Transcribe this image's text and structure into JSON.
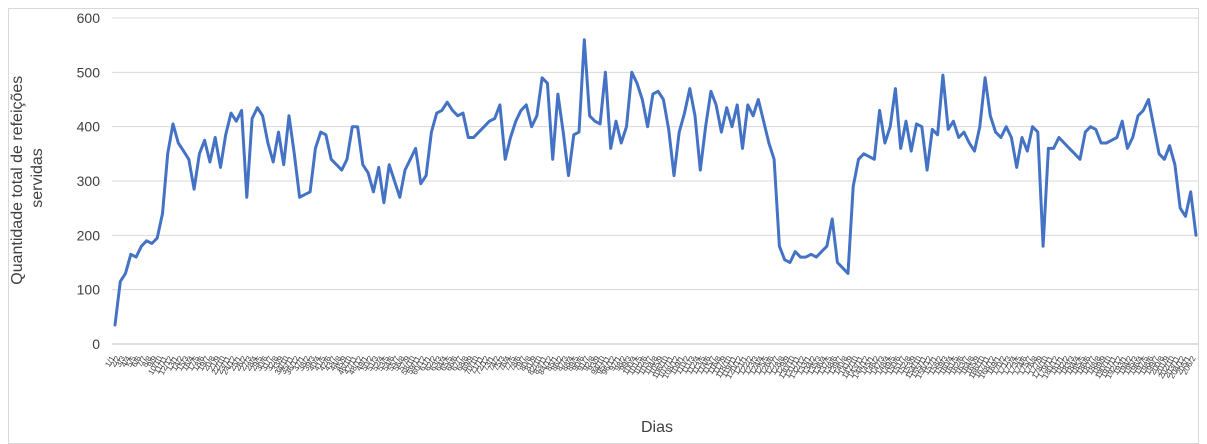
{
  "chart_data": {
    "type": "line",
    "title": "",
    "xlabel": "Dias",
    "ylabel": "Quantidade total de refeições servidas",
    "ylim": [
      0,
      600
    ],
    "yticks": [
      0,
      100,
      200,
      300,
      400,
      500,
      600
    ],
    "grid": true,
    "legend": "none",
    "series": [
      {
        "color": "#4472c4",
        "values": [
          35,
          115,
          130,
          165,
          160,
          180,
          190,
          185,
          195,
          240,
          350,
          405,
          370,
          355,
          340,
          285,
          350,
          375,
          335,
          380,
          325,
          385,
          425,
          410,
          430,
          270,
          415,
          435,
          420,
          370,
          335,
          390,
          330,
          420,
          350,
          270,
          275,
          280,
          360,
          390,
          385,
          340,
          330,
          320,
          340,
          400,
          400,
          330,
          315,
          280,
          325,
          260,
          330,
          300,
          270,
          320,
          340,
          360,
          295,
          310,
          390,
          425,
          430,
          445,
          430,
          420,
          425,
          380,
          380,
          390,
          400,
          410,
          415,
          440,
          340,
          380,
          410,
          430,
          440,
          400,
          420,
          490,
          480,
          340,
          460,
          390,
          310,
          385,
          390,
          560,
          420,
          410,
          405,
          500,
          360,
          410,
          370,
          400,
          500,
          480,
          450,
          400,
          460,
          465,
          450,
          395,
          310,
          390,
          425,
          470,
          420,
          320,
          400,
          465,
          440,
          390,
          435,
          400,
          440,
          360,
          440,
          420,
          450,
          410,
          370,
          340,
          180,
          155,
          150,
          170,
          160,
          160,
          165,
          160,
          170,
          180,
          230,
          150,
          140,
          130,
          290,
          340,
          350,
          345,
          340,
          430,
          370,
          400,
          470,
          360,
          410,
          355,
          405,
          400,
          320,
          395,
          385,
          495,
          395,
          410,
          380,
          390,
          370,
          355,
          400,
          490,
          420,
          390,
          380,
          400,
          380,
          325,
          380,
          355,
          400,
          390,
          180,
          360,
          360,
          380,
          370,
          360,
          350,
          340,
          390,
          400,
          395,
          370,
          370,
          375,
          380,
          410,
          360,
          380,
          420,
          430,
          450,
          400,
          350,
          340,
          365,
          330,
          250,
          235,
          280,
          200
        ]
      }
    ],
    "x_tick_note": "daily tick labels, rotated and illegible"
  }
}
